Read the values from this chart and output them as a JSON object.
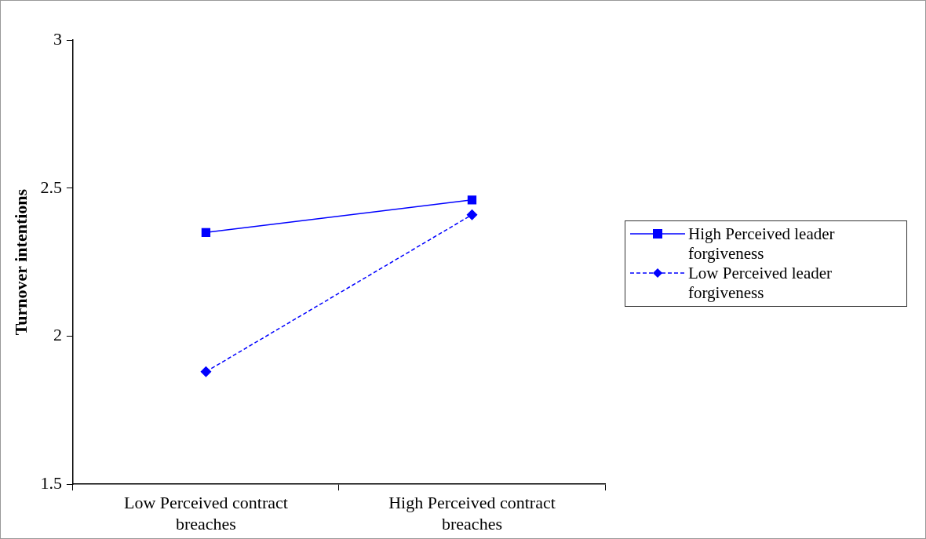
{
  "chart_data": {
    "type": "line",
    "ylabel": "Turnover intentions",
    "categories": [
      "Low Perceived contract breaches",
      "High Perceived contract breaches"
    ],
    "series": [
      {
        "name": "High Perceived leader forgiveness",
        "color": "#0000ff",
        "values": [
          2.35,
          2.46
        ],
        "marker": "square",
        "line_style": "solid"
      },
      {
        "name": "Low Perceived leader forgiveness",
        "color": "#0000ff",
        "values": [
          1.88,
          2.41
        ],
        "marker": "diamond",
        "line_style": "dashed"
      }
    ],
    "ylim": [
      1.5,
      3
    ],
    "yticks": [
      1.5,
      2,
      2.5,
      3
    ],
    "grid": false,
    "legend": "right"
  }
}
